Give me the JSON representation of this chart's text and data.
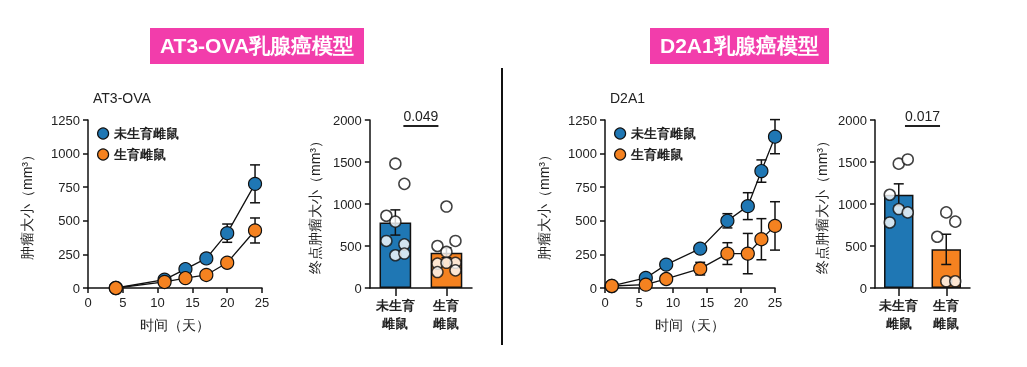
{
  "chart_data": [
    {
      "type": "line",
      "title": "AT3-OVA",
      "annotations": [
        "AT3-OVA乳腺癌模型"
      ],
      "xlabel": "时间（天）",
      "ylabel": "肿瘤大小（mm³）",
      "xlim": [
        0,
        25
      ],
      "xticks": [
        0,
        5,
        10,
        15,
        20,
        25
      ],
      "ylim": [
        0,
        1250
      ],
      "yticks": [
        0,
        250,
        500,
        750,
        1000,
        1250
      ],
      "grid": false,
      "legend": "top left",
      "marker": "circle",
      "x": [
        4,
        11,
        14,
        17,
        20,
        24
      ],
      "series": [
        {
          "name": "未生育雌鼠",
          "color": "#1f77b4",
          "values": [
            0,
            62,
            141,
            220,
            408,
            775
          ],
          "errors": [
            null,
            null,
            null,
            null,
            68,
            141
          ]
        },
        {
          "name": "生育雌鼠",
          "color": "#f58220",
          "values": [
            0,
            45,
            74,
            97,
            188,
            428
          ],
          "errors": [
            null,
            null,
            null,
            null,
            null,
            93
          ]
        }
      ]
    },
    {
      "type": "bar",
      "ylabel": "终点肿瘤大小（mm³）",
      "categories": [
        "未生育雌鼠",
        "生育雌鼠"
      ],
      "ylim": [
        0,
        2000
      ],
      "yticks": [
        0,
        500,
        1000,
        1500,
        2000
      ],
      "grid": false,
      "annotations": [
        "0.049"
      ],
      "series": [
        {
          "type": "bar",
          "colors": [
            "#1f77b4",
            "#f58220"
          ],
          "values": [
            780,
            420
          ],
          "errors": [
            150,
            60
          ]
        },
        {
          "type": "scatter",
          "color": "#ffffff",
          "x": [
            "未生育雌鼠",
            "未生育雌鼠",
            "未生育雌鼠",
            "未生育雌鼠",
            "未生育雌鼠",
            "未生育雌鼠",
            "未生育雌鼠",
            "未生育雌鼠",
            "生育雌鼠",
            "生育雌鼠",
            "生育雌鼠",
            "生育雌鼠",
            "生育雌鼠",
            "生育雌鼠",
            "生育雌鼠",
            "生育雌鼠",
            "生育雌鼠"
          ],
          "values": [
            1480,
            1240,
            860,
            790,
            520,
            560,
            390,
            410,
            970,
            560,
            500,
            430,
            300,
            290,
            300,
            210,
            190
          ]
        }
      ]
    },
    {
      "type": "line",
      "title": "D2A1",
      "annotations": [
        "D2A1乳腺癌模型"
      ],
      "xlabel": "时间（天）",
      "ylabel": "肿瘤大小（mm³）",
      "xlim": [
        0,
        25
      ],
      "xticks": [
        0,
        5,
        10,
        15,
        20,
        25
      ],
      "ylim": [
        0,
        1250
      ],
      "yticks": [
        0,
        250,
        500,
        750,
        1000,
        1250
      ],
      "grid": false,
      "legend": "top left",
      "marker": "circle",
      "x": [
        1,
        6,
        9,
        14,
        18,
        21,
        23,
        25
      ],
      "series": [
        {
          "name": "未生育雌鼠",
          "color": "#1f77b4",
          "values": [
            15,
            75,
            174,
            293,
            500,
            609,
            870,
            1126
          ],
          "errors": [
            null,
            null,
            null,
            null,
            53,
            100,
            83,
            127
          ]
        },
        {
          "name": "生育雌鼠",
          "color": "#f58220",
          "values": [
            15,
            25,
            67,
            144,
            256,
            256,
            363,
            462
          ],
          "errors": [
            null,
            null,
            null,
            47,
            81,
            150,
            153,
            180
          ]
        }
      ]
    },
    {
      "type": "bar",
      "ylabel": "终点肿瘤大小（mm³）",
      "categories": [
        "未生育雌鼠",
        "生育雌鼠"
      ],
      "ylim": [
        0,
        2000
      ],
      "yticks": [
        0,
        500,
        1000,
        1500,
        2000
      ],
      "grid": false,
      "annotations": [
        "0.017"
      ],
      "series": [
        {
          "type": "bar",
          "colors": [
            "#1f77b4",
            "#f58220"
          ],
          "values": [
            1110,
            460
          ],
          "errors": [
            130,
            180
          ]
        },
        {
          "type": "scatter",
          "color": "#ffffff",
          "x": [
            "未生育雌鼠",
            "未生育雌鼠",
            "未生育雌鼠",
            "未生育雌鼠",
            "未生育雌鼠",
            "未生育雌鼠",
            "生育雌鼠",
            "生育雌鼠",
            "生育雌鼠",
            "生育雌鼠",
            "生育雌鼠"
          ],
          "values": [
            1480,
            1530,
            1110,
            940,
            900,
            780,
            900,
            790,
            610,
            80,
            80
          ]
        }
      ]
    }
  ]
}
